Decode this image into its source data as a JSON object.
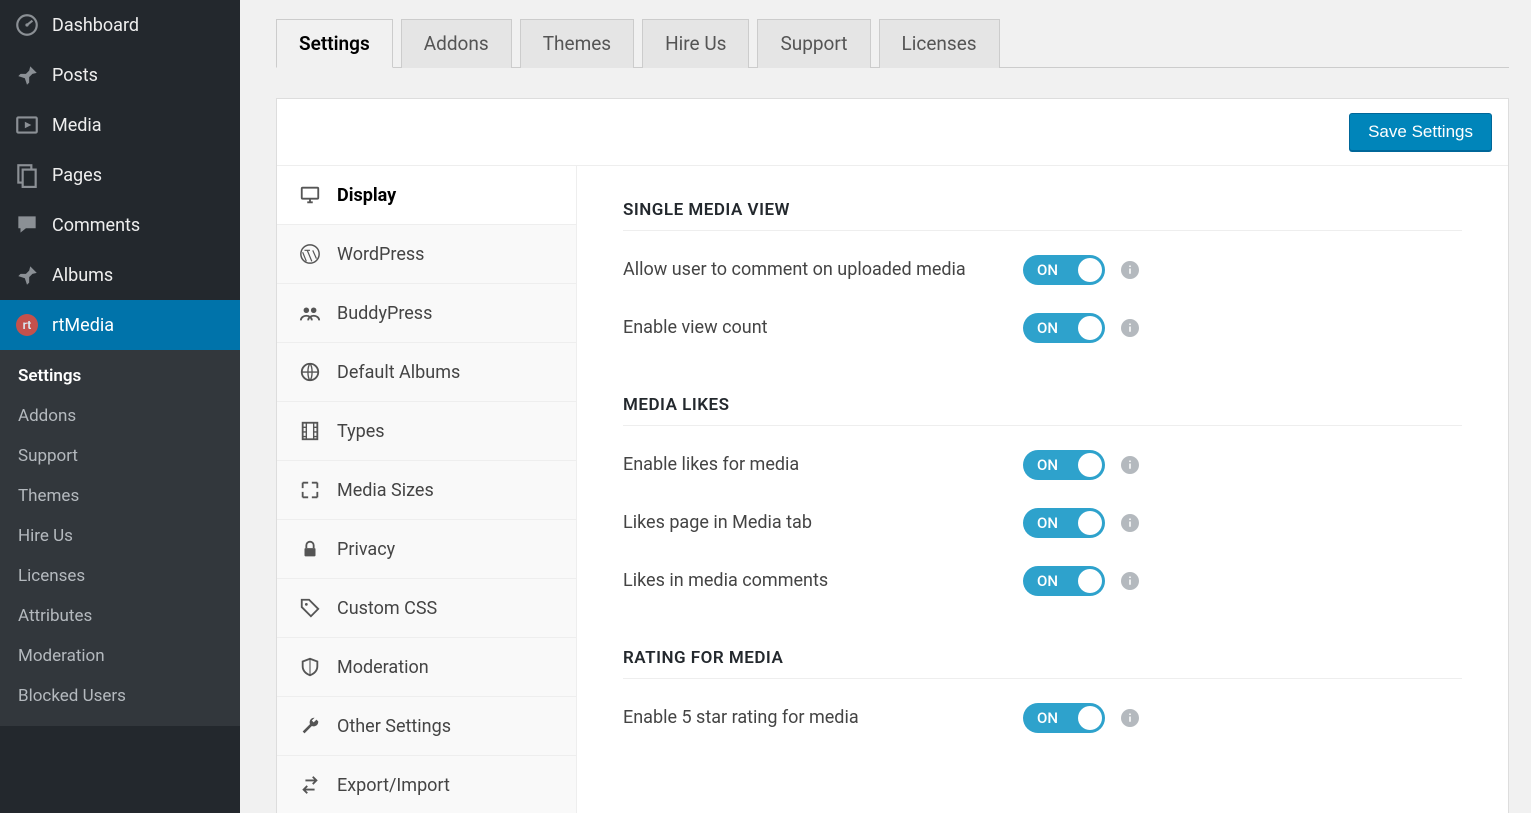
{
  "colors": {
    "sidebar_bg": "#23282d",
    "sidebar_active_bg": "#0073aa",
    "submenu_bg": "#32373c",
    "main_bg": "#f1f1f1",
    "panel_bg": "#ffffff",
    "border": "#dddddd",
    "toggle_on_bg": "#2ea2cc",
    "primary_btn_bg": "#0085ba",
    "info_icon_bg": "#b4b9be"
  },
  "admin_sidebar": {
    "items": [
      {
        "label": "Dashboard",
        "icon": "dashboard"
      },
      {
        "label": "Posts",
        "icon": "pin"
      },
      {
        "label": "Media",
        "icon": "media"
      },
      {
        "label": "Pages",
        "icon": "pages"
      },
      {
        "label": "Comments",
        "icon": "comment"
      },
      {
        "label": "Albums",
        "icon": "pin"
      },
      {
        "label": "rtMedia",
        "icon": "rtmedia",
        "active": true
      }
    ],
    "submenu": [
      {
        "label": "Settings",
        "current": true
      },
      {
        "label": "Addons"
      },
      {
        "label": "Support"
      },
      {
        "label": "Themes"
      },
      {
        "label": "Hire Us"
      },
      {
        "label": "Licenses"
      },
      {
        "label": "Attributes"
      },
      {
        "label": "Moderation"
      },
      {
        "label": "Blocked Users"
      }
    ]
  },
  "top_tabs": [
    {
      "label": "Settings",
      "active": true
    },
    {
      "label": "Addons"
    },
    {
      "label": "Themes"
    },
    {
      "label": "Hire Us"
    },
    {
      "label": "Support"
    },
    {
      "label": "Licenses"
    }
  ],
  "save_button_label": "Save Settings",
  "settings_tabs": [
    {
      "label": "Display",
      "icon": "monitor",
      "active": true
    },
    {
      "label": "WordPress",
      "icon": "wordpress"
    },
    {
      "label": "BuddyPress",
      "icon": "group"
    },
    {
      "label": "Default Albums",
      "icon": "globe"
    },
    {
      "label": "Types",
      "icon": "film"
    },
    {
      "label": "Media Sizes",
      "icon": "expand"
    },
    {
      "label": "Privacy",
      "icon": "lock"
    },
    {
      "label": "Custom CSS",
      "icon": "tag"
    },
    {
      "label": "Moderation",
      "icon": "shield"
    },
    {
      "label": "Other Settings",
      "icon": "wrench"
    },
    {
      "label": "Export/Import",
      "icon": "transfer"
    }
  ],
  "toggle_on_label": "ON",
  "sections": [
    {
      "title": "SINGLE MEDIA VIEW",
      "settings": [
        {
          "label": "Allow user to comment on uploaded media",
          "value": true
        },
        {
          "label": "Enable view count",
          "value": true
        }
      ]
    },
    {
      "title": "MEDIA LIKES",
      "settings": [
        {
          "label": "Enable likes for media",
          "value": true
        },
        {
          "label": "Likes page in Media tab",
          "value": true
        },
        {
          "label": "Likes in media comments",
          "value": true
        }
      ]
    },
    {
      "title": "RATING FOR MEDIA",
      "settings": [
        {
          "label": "Enable 5 star rating for media",
          "value": true
        }
      ]
    }
  ]
}
